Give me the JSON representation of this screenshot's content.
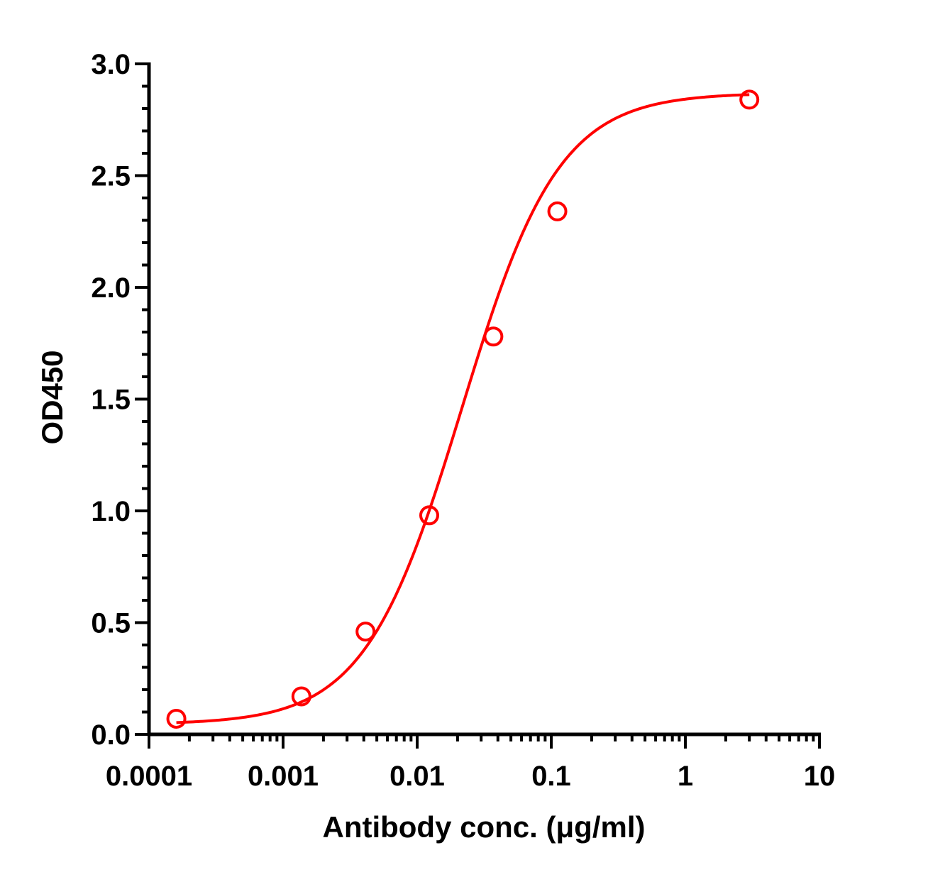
{
  "chart_data": {
    "type": "scatter",
    "xlabel": "Antibody conc. (μg/ml)",
    "ylabel": "OD450",
    "x_scale": "log",
    "xlim": [
      0.0001,
      10
    ],
    "ylim": [
      0,
      3.0
    ],
    "x_tick_labels": [
      "0.0001",
      "0.001",
      "0.01",
      "0.1",
      "1",
      "10"
    ],
    "y_tick_labels": [
      "0.0",
      "0.5",
      "1.0",
      "1.5",
      "2.0",
      "2.5",
      "3.0"
    ],
    "grid": false,
    "series": [
      {
        "color": "#ff0000",
        "marker": "open-circle",
        "fit": "4PL sigmoidal curve",
        "x": [
          0.00016,
          0.00137,
          0.00412,
          0.0123,
          0.037,
          0.111,
          3.0
        ],
        "y": [
          0.07,
          0.17,
          0.46,
          0.98,
          1.78,
          2.34,
          2.84
        ]
      }
    ]
  }
}
